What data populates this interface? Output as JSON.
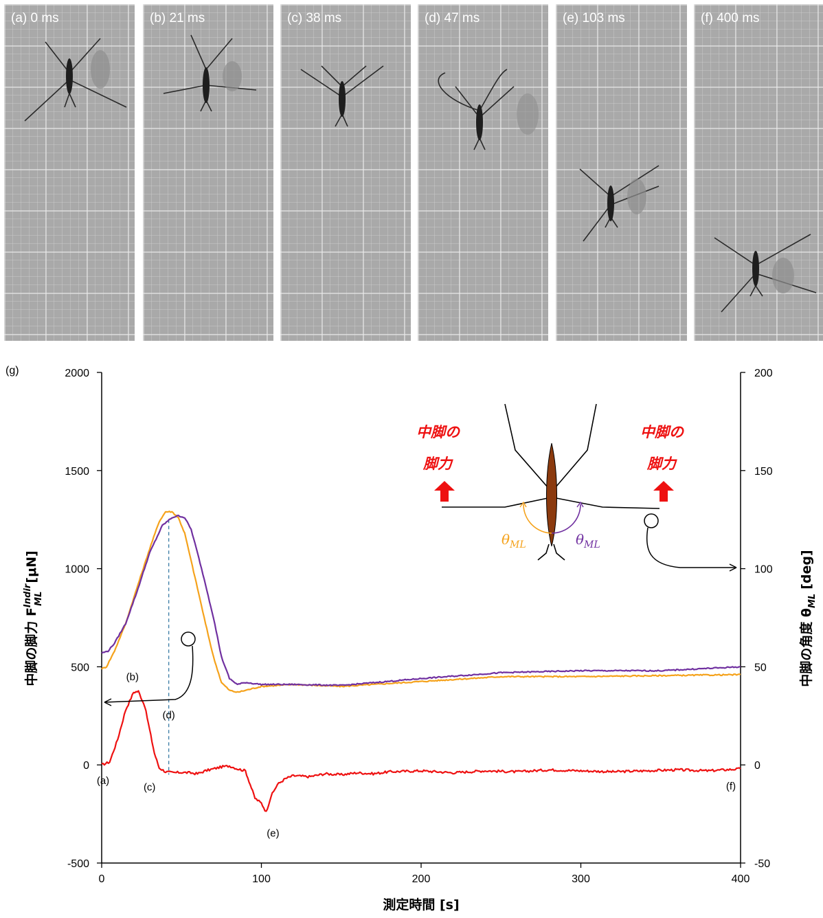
{
  "frames": [
    {
      "label": "(a) 0 ms"
    },
    {
      "label": "(b) 21 ms"
    },
    {
      "label": "(c) 38 ms"
    },
    {
      "label": "(d) 47 ms"
    },
    {
      "label": "(e) 103 ms"
    },
    {
      "label": "(f) 400 ms"
    }
  ],
  "chart_data": {
    "type": "line",
    "panel_label": "(g)",
    "xlabel": "測定時間 [s]",
    "ylabel_left": "中脚の脚力 F",
    "ylabel_left_sup": "Indir",
    "ylabel_left_sub": "ML",
    "ylabel_left_unit": "[μN]",
    "ylabel_right": "中脚の角度 θ",
    "ylabel_right_sub": "ML",
    "ylabel_right_unit": "[deg]",
    "xlim": [
      0,
      400
    ],
    "ylim_left": [
      -500,
      2000
    ],
    "ylim_right": [
      -50,
      200
    ],
    "x_ticks": [
      "0",
      "100",
      "200",
      "300",
      "400"
    ],
    "y_ticks_left": [
      "-500",
      "0",
      "500",
      "1000",
      "1500",
      "2000"
    ],
    "y_ticks_right": [
      "-50",
      "0",
      "50",
      "100",
      "150",
      "200"
    ],
    "grid": false,
    "series": [
      {
        "axis": "left",
        "color": "#ee1111",
        "x": [
          0,
          5,
          10,
          15,
          20,
          23,
          27,
          30,
          33,
          36,
          40,
          45,
          50,
          55,
          60,
          65,
          70,
          75,
          80,
          85,
          90,
          93,
          96,
          100,
          103,
          106,
          110,
          115,
          120,
          130,
          140,
          150,
          160,
          170,
          180,
          200,
          220,
          240,
          260,
          280,
          300,
          320,
          340,
          360,
          380,
          400
        ],
        "values": [
          0,
          15,
          130,
          280,
          370,
          375,
          300,
          180,
          60,
          -15,
          -35,
          -40,
          -38,
          -40,
          -45,
          -30,
          -20,
          -10,
          -5,
          -20,
          -30,
          -100,
          -170,
          -195,
          -240,
          -160,
          -100,
          -70,
          -55,
          -60,
          -45,
          -50,
          -40,
          -45,
          -35,
          -30,
          -40,
          -30,
          -35,
          -25,
          -30,
          -35,
          -30,
          -25,
          -30,
          -20
        ]
      },
      {
        "axis": "right",
        "color": "#f5a21b",
        "x": [
          0,
          3,
          8,
          15,
          22,
          30,
          36,
          40,
          44,
          48,
          52,
          56,
          60,
          65,
          70,
          75,
          80,
          85,
          90,
          100,
          120,
          150,
          200,
          250,
          300,
          350,
          400
        ],
        "values": [
          49,
          50,
          58,
          72,
          90,
          110,
          124,
          129,
          129,
          126,
          118,
          104,
          90,
          72,
          55,
          42,
          38,
          37,
          38,
          40,
          41,
          40,
          42.5,
          45,
          45,
          45.5,
          46
        ]
      },
      {
        "axis": "right",
        "color": "#7030a0",
        "x": [
          0,
          4,
          8,
          15,
          22,
          30,
          38,
          44,
          48,
          52,
          56,
          60,
          65,
          70,
          75,
          80,
          85,
          90,
          100,
          120,
          150,
          200,
          250,
          300,
          350,
          400
        ],
        "values": [
          57,
          58,
          62,
          72,
          88,
          108,
          122,
          126,
          127,
          126,
          120,
          108,
          92,
          75,
          55,
          44,
          41,
          42,
          41,
          41,
          40.5,
          44,
          47,
          48,
          48,
          50
        ]
      }
    ],
    "annotations": [
      {
        "text": "(a)",
        "x": 0,
        "y": 0
      },
      {
        "text": "(b)",
        "x": 21,
        "y": 375
      },
      {
        "text": "(c)",
        "x": 36,
        "y": -40
      },
      {
        "text": "(d)",
        "x": 42,
        "y": 230
      },
      {
        "text": "(e)",
        "x": 103,
        "y": -240
      },
      {
        "text": "(f)",
        "x": 400,
        "y": -20
      }
    ],
    "marker_line_x": 42,
    "inset": {
      "left_label_line1": "中脚の",
      "left_label_line2": "脚力",
      "right_label_line1": "中脚の",
      "right_label_line2": "脚力",
      "angle_label_left": "θ",
      "angle_label_left_sub": "ML",
      "angle_label_right": "θ",
      "angle_label_right_sub": "ML"
    }
  }
}
